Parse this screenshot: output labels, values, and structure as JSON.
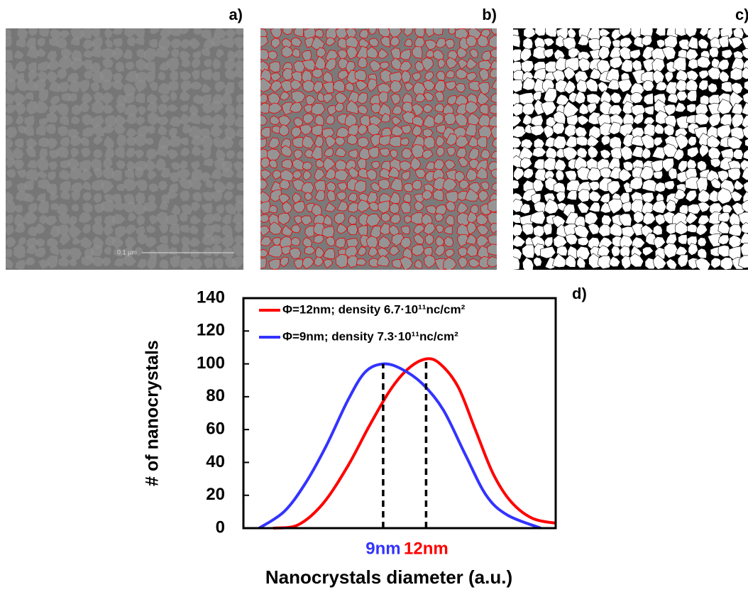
{
  "panels": {
    "a": "a)",
    "b": "b)",
    "c": "c)",
    "d": "d)"
  },
  "image_a_scalebar": "0.1 µm",
  "chart_data": {
    "type": "line",
    "xlabel": "Nanocrystals diameter (a.u.)",
    "ylabel": "# of nanocrystals",
    "xlim": [
      0,
      4
    ],
    "ylim": [
      0,
      140
    ],
    "yticks": [
      0,
      20,
      40,
      60,
      80,
      100,
      120,
      140
    ],
    "legend": "upper left",
    "series": [
      {
        "name": "Φ=12nm; density 6.7·10¹¹nc/cm²",
        "color": "#ff0000",
        "x": [
          0.38,
          0.7,
          1.02,
          1.34,
          1.61,
          1.88,
          2.11,
          2.34,
          2.52,
          2.75,
          2.97,
          3.2,
          3.43,
          3.7,
          4.0
        ],
        "values": [
          0,
          2,
          15,
          38,
          62,
          84,
          97,
          103,
          100,
          86,
          60,
          33,
          16,
          6,
          3
        ]
      },
      {
        "name": "Φ=9nm; density 7.3·10¹¹nc/cm²",
        "color": "#3333ff",
        "x": [
          0.2,
          0.52,
          0.79,
          1.06,
          1.34,
          1.56,
          1.79,
          2.02,
          2.29,
          2.56,
          2.84,
          3.11,
          3.38,
          3.81
        ],
        "values": [
          0,
          10,
          27,
          50,
          78,
          95,
          100,
          97,
          88,
          72,
          45,
          20,
          8,
          0
        ]
      }
    ],
    "markers": [
      {
        "x": 1.79,
        "value": 100,
        "label": "9nm",
        "color": "#3333ff"
      },
      {
        "x": 2.34,
        "value": 103,
        "label": "12nm",
        "color": "#ff0000"
      }
    ]
  }
}
